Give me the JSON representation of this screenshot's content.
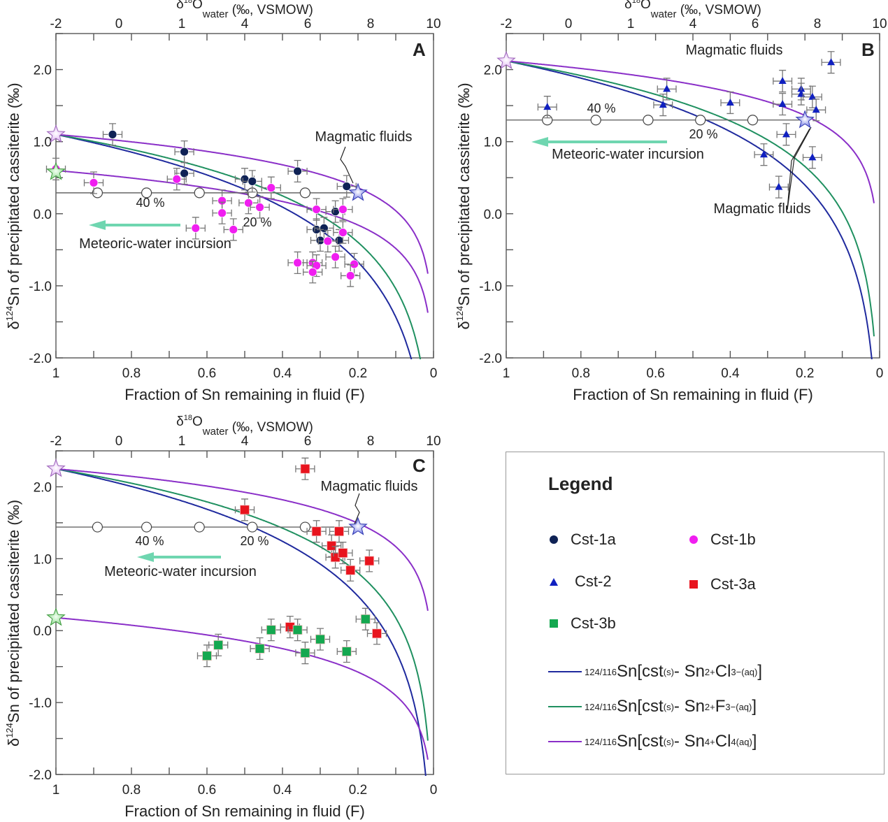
{
  "chart_data": [
    {
      "panel": "A",
      "type": "scatter",
      "xlabel": "Fraction of Sn remaining in fluid (F)",
      "ylabel": "δ124Sn of precipitated cassiterite (‰)",
      "top_xlabel": "δ18O water (‰, VSMOW)",
      "xlim": [
        1,
        0
      ],
      "ylim": [
        -2.0,
        2.5
      ],
      "x_ticks": [
        "1",
        "0.8",
        "0.6",
        "0.4",
        "0.2",
        "0"
      ],
      "y_ticks": [
        "2.0",
        "1.0",
        "0.0",
        "-1.0",
        "-2.0"
      ],
      "top_ticks": [
        "-2",
        "0",
        "1",
        "4",
        "6",
        "8",
        "10"
      ],
      "annotations": {
        "magmatic": "Magmatic fluids",
        "meteoric": "Meteoric-water incursion",
        "pct40": "40 %",
        "pct20": "20 %"
      },
      "mixing_line": {
        "y": 0.29,
        "F_circles": [
          0.89,
          0.76,
          0.62,
          0.48,
          0.34
        ]
      },
      "stars": [
        {
          "F": 1.0,
          "y": 1.1,
          "color": "#d9a8f0"
        },
        {
          "F": 1.0,
          "y": 0.58,
          "color": "#7fd27f"
        },
        {
          "F": 0.2,
          "y": 0.29,
          "color": "#5a63e0"
        }
      ],
      "curves": [
        {
          "name": "Sn2+Cl3-",
          "color": "#1f2a9e",
          "y0": 1.1,
          "k": 1.1
        },
        {
          "name": "Sn2+F3-",
          "color": "#1f9060",
          "y0": 1.1,
          "k": 0.93
        },
        {
          "name": "Sn4+Cl4",
          "color": "#8a2fc8",
          "y0": 1.1,
          "k": 0.46
        },
        {
          "name": "Sn4+Cl4",
          "color": "#8a2fc8",
          "y0": 0.6,
          "k": 0.47
        }
      ],
      "series": [
        {
          "name": "Cst-1a",
          "marker": "circle",
          "color": "#0f2255",
          "points": [
            [
              0.85,
              1.1
            ],
            [
              0.66,
              0.86
            ],
            [
              0.66,
              0.56
            ],
            [
              0.5,
              0.48
            ],
            [
              0.48,
              0.45
            ],
            [
              0.36,
              0.59
            ],
            [
              0.23,
              0.38
            ],
            [
              0.26,
              0.03
            ],
            [
              0.31,
              -0.22
            ],
            [
              0.29,
              -0.2
            ],
            [
              0.3,
              -0.37
            ],
            [
              0.25,
              -0.37
            ]
          ]
        },
        {
          "name": "Cst-1b",
          "marker": "circle",
          "color": "#f01ef0",
          "points": [
            [
              1.0,
              0.62
            ],
            [
              0.9,
              0.43
            ],
            [
              0.68,
              0.48
            ],
            [
              0.56,
              0.18
            ],
            [
              0.56,
              0.01
            ],
            [
              0.49,
              0.15
            ],
            [
              0.46,
              0.09
            ],
            [
              0.53,
              -0.22
            ],
            [
              0.63,
              -0.2
            ],
            [
              0.43,
              0.36
            ],
            [
              0.31,
              0.06
            ],
            [
              0.24,
              0.06
            ],
            [
              0.24,
              -0.26
            ],
            [
              0.28,
              -0.38
            ],
            [
              0.36,
              -0.68
            ],
            [
              0.32,
              -0.68
            ],
            [
              0.31,
              -0.72
            ],
            [
              0.32,
              -0.81
            ],
            [
              0.26,
              -0.6
            ],
            [
              0.21,
              -0.7
            ],
            [
              0.22,
              -0.86
            ]
          ]
        }
      ]
    },
    {
      "panel": "B",
      "type": "scatter",
      "xlabel": "Fraction of Sn remaining in fluid (F)",
      "ylabel": "δ124Sn of precipitated cassiterite (‰)",
      "top_xlabel": "δ18O water (‰, VSMOW)",
      "xlim": [
        1,
        0
      ],
      "ylim": [
        -2.0,
        2.5
      ],
      "x_ticks": [
        "1",
        "0.8",
        "0.6",
        "0.4",
        "0.2",
        "0"
      ],
      "y_ticks": [
        "2.0",
        "1.0",
        "0.0",
        "-1.0",
        "-2.0"
      ],
      "top_ticks": [
        "-2",
        "0",
        "1",
        "4",
        "6",
        "8",
        "10"
      ],
      "annotations": {
        "magmatic": "Magmatic fluids",
        "magmatic2": "Magmatic fluids",
        "meteoric": "Meteoric-water incursion",
        "pct40": "40 %",
        "pct20": "20 %"
      },
      "mixing_line": {
        "y": 1.3,
        "F_circles": [
          0.89,
          0.76,
          0.62,
          0.48,
          0.34
        ]
      },
      "stars": [
        {
          "F": 1.0,
          "y": 2.12,
          "color": "#d9a8f0"
        },
        {
          "F": 0.2,
          "y": 1.3,
          "color": "#5a63e0"
        }
      ],
      "curves": [
        {
          "name": "Sn2+Cl3-",
          "color": "#1f2a9e",
          "y0": 2.12,
          "k": 1.07
        },
        {
          "name": "Sn2+F3-",
          "color": "#1f9060",
          "y0": 2.12,
          "k": 0.91
        },
        {
          "name": "Sn4+Cl4",
          "color": "#8a2fc8",
          "y0": 2.12,
          "k": 0.47
        }
      ],
      "series": [
        {
          "name": "Cst-2",
          "marker": "triangle",
          "color": "#1020c0",
          "points": [
            [
              0.89,
              1.48
            ],
            [
              0.57,
              1.73
            ],
            [
              0.58,
              1.51
            ],
            [
              0.4,
              1.54
            ],
            [
              0.31,
              0.82
            ],
            [
              0.27,
              0.37
            ],
            [
              0.25,
              1.1
            ],
            [
              0.26,
              1.52
            ],
            [
              0.26,
              1.84
            ],
            [
              0.21,
              1.73
            ],
            [
              0.21,
              1.66
            ],
            [
              0.18,
              1.62
            ],
            [
              0.17,
              1.44
            ],
            [
              0.18,
              0.78
            ],
            [
              0.13,
              2.1
            ]
          ]
        }
      ]
    },
    {
      "panel": "C",
      "type": "scatter",
      "xlabel": "Fraction of Sn remaining in fluid (F)",
      "ylabel": "δ124Sn of precipitated cassiterite (‰)",
      "top_xlabel": "δ18O water (‰, VSMOW)",
      "xlim": [
        1,
        0
      ],
      "ylim": [
        -2.0,
        2.5
      ],
      "x_ticks": [
        "1",
        "0.8",
        "0.6",
        "0.4",
        "0.2",
        "0"
      ],
      "y_ticks": [
        "2.0",
        "1.0",
        "0.0",
        "-1.0",
        "-2.0"
      ],
      "top_ticks": [
        "-2",
        "0",
        "1",
        "4",
        "6",
        "8",
        "10"
      ],
      "annotations": {
        "magmatic": "Magmatic fluids",
        "meteoric": "Meteoric-water incursion",
        "pct40": "40 %",
        "pct20": "20 %"
      },
      "mixing_line": {
        "y": 1.44,
        "F_circles": [
          0.89,
          0.76,
          0.62,
          0.48,
          0.34
        ]
      },
      "stars": [
        {
          "F": 1.0,
          "y": 2.25,
          "color": "#d9a8f0"
        },
        {
          "F": 1.0,
          "y": 0.18,
          "color": "#7fd27f"
        },
        {
          "F": 0.2,
          "y": 1.44,
          "color": "#5a63e0"
        }
      ],
      "curves": [
        {
          "name": "Sn2+Cl3-",
          "color": "#1f2a9e",
          "y0": 2.25,
          "k": 1.1
        },
        {
          "name": "Sn2+F3-",
          "color": "#1f9060",
          "y0": 2.25,
          "k": 0.9
        },
        {
          "name": "Sn4+Cl4",
          "color": "#8a2fc8",
          "y0": 2.25,
          "k": 0.47
        },
        {
          "name": "Sn4+Cl4",
          "color": "#8a2fc8",
          "y0": 0.18,
          "k": 0.47
        }
      ],
      "series": [
        {
          "name": "Cst-3a",
          "marker": "square",
          "color": "#e8141e",
          "points": [
            [
              0.34,
              2.25
            ],
            [
              0.5,
              1.68
            ],
            [
              0.31,
              1.38
            ],
            [
              0.25,
              1.38
            ],
            [
              0.27,
              1.18
            ],
            [
              0.26,
              1.02
            ],
            [
              0.24,
              1.08
            ],
            [
              0.22,
              0.84
            ],
            [
              0.17,
              0.97
            ],
            [
              0.38,
              0.05
            ],
            [
              0.15,
              -0.04
            ]
          ]
        },
        {
          "name": "Cst-3b",
          "marker": "square",
          "color": "#14a850",
          "points": [
            [
              0.6,
              -0.35
            ],
            [
              0.57,
              -0.2
            ],
            [
              0.46,
              -0.25
            ],
            [
              0.43,
              0.01
            ],
            [
              0.36,
              0.01
            ],
            [
              0.34,
              -0.31
            ],
            [
              0.3,
              -0.12
            ],
            [
              0.23,
              -0.29
            ],
            [
              0.18,
              0.16
            ]
          ]
        }
      ]
    }
  ],
  "legend": {
    "title": "Legend",
    "markers": [
      {
        "label": "Cst-1a",
        "marker": "circle",
        "color": "#0f2255"
      },
      {
        "label": "Cst-1b",
        "marker": "circle",
        "color": "#f01ef0"
      },
      {
        "label": "Cst-2",
        "marker": "triangle",
        "color": "#1020c0"
      },
      {
        "label": "Cst-3a",
        "marker": "square",
        "color": "#e8141e"
      },
      {
        "label": "Cst-3b",
        "marker": "square",
        "color": "#14a850"
      }
    ],
    "lines": [
      {
        "color": "#1f2a9e",
        "pre": "124/116",
        "main": "Sn[cst",
        "sub1": "(s)",
        "mid": "- Sn",
        "sup2": "2+",
        "ion": "Cl",
        "sub2": "3",
        "sup3": "−",
        "sub3": "(aq)",
        "end": "]"
      },
      {
        "color": "#1f9060",
        "pre": "124/116",
        "main": "Sn[cst",
        "sub1": "(s)",
        "mid": "- Sn",
        "sup2": "2+",
        "ion": "F",
        "sub2": "3",
        "sup3": "−",
        "sub3": "(aq)",
        "end": "]"
      },
      {
        "color": "#8a2fc8",
        "pre": "124/116",
        "main": "Sn[cst",
        "sub1": "(s)",
        "mid": "- Sn",
        "sup2": "4+",
        "ion": "Cl",
        "sub2": "4(aq)",
        "sup3": "",
        "sub3": "",
        "end": "]"
      }
    ]
  }
}
